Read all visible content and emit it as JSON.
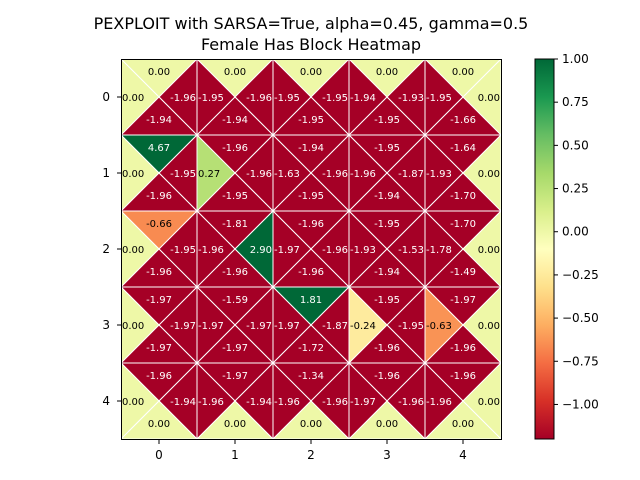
{
  "chart_data": {
    "type": "heatmap",
    "title_lines": [
      "PEXPLOIT with SARSA=True, alpha=0.45, gamma=0.5",
      "Female Has Block Heatmap"
    ],
    "x_ticks": [
      "0",
      "1",
      "2",
      "3",
      "4"
    ],
    "y_ticks": [
      "0",
      "1",
      "2",
      "3",
      "4"
    ],
    "colorbar": {
      "vmin": -1.2,
      "vmax": 1.0,
      "colormap": "RdYlGn",
      "ticks": [
        1.0,
        0.75,
        0.5,
        0.25,
        0.0,
        -0.25,
        -0.5,
        -0.75,
        -1.0
      ],
      "tick_labels": [
        "1.00",
        "0.75",
        "0.50",
        "0.25",
        "0.00",
        "−0.25",
        "−0.50",
        "−0.75",
        "−1.00"
      ]
    },
    "cells": [
      [
        {
          "top": 0.0,
          "left": 0.0,
          "right": -1.96,
          "bottom": -1.94
        },
        {
          "top": 0.0,
          "left": -1.95,
          "right": -1.96,
          "bottom": -1.94
        },
        {
          "top": 0.0,
          "left": -1.95,
          "right": -1.95,
          "bottom": -1.95
        },
        {
          "top": 0.0,
          "left": -1.94,
          "right": -1.93,
          "bottom": -1.95
        },
        {
          "top": 0.0,
          "left": -1.95,
          "right": 0.0,
          "bottom": -1.66
        }
      ],
      [
        {
          "top": 4.67,
          "left": 0.0,
          "right": -1.95,
          "bottom": -1.96
        },
        {
          "top": -1.96,
          "left": 0.27,
          "right": -1.96,
          "bottom": -1.95
        },
        {
          "top": -1.94,
          "left": -1.63,
          "right": -1.96,
          "bottom": -1.95
        },
        {
          "top": -1.95,
          "left": -1.96,
          "right": -1.87,
          "bottom": -1.94
        },
        {
          "top": -1.64,
          "left": -1.93,
          "right": 0.0,
          "bottom": -1.7
        }
      ],
      [
        {
          "top": -0.66,
          "left": 0.0,
          "right": -1.95,
          "bottom": -1.96
        },
        {
          "top": -1.81,
          "left": -1.96,
          "right": 2.9,
          "bottom": -1.96
        },
        {
          "top": -1.96,
          "left": -1.97,
          "right": -1.96,
          "bottom": -1.96
        },
        {
          "top": -1.95,
          "left": -1.93,
          "right": -1.53,
          "bottom": -1.94
        },
        {
          "top": -1.7,
          "left": -1.78,
          "right": 0.0,
          "bottom": -1.49
        }
      ],
      [
        {
          "top": -1.97,
          "left": 0.0,
          "right": -1.97,
          "bottom": -1.97
        },
        {
          "top": -1.59,
          "left": -1.97,
          "right": -1.97,
          "bottom": -1.97
        },
        {
          "top": 1.81,
          "left": -1.97,
          "right": -1.87,
          "bottom": -1.72
        },
        {
          "top": -1.95,
          "left": -0.24,
          "right": -1.95,
          "bottom": -1.96
        },
        {
          "top": -1.97,
          "left": -0.63,
          "right": 0.0,
          "bottom": -1.96
        }
      ],
      [
        {
          "top": -1.96,
          "left": 0.0,
          "right": -1.94,
          "bottom": 0.0
        },
        {
          "top": -1.97,
          "left": -1.96,
          "right": -1.94,
          "bottom": 0.0
        },
        {
          "top": -1.34,
          "left": -1.96,
          "right": -1.96,
          "bottom": 0.0
        },
        {
          "top": -1.96,
          "left": -1.97,
          "right": -1.96,
          "bottom": 0.0
        },
        {
          "top": -1.96,
          "left": -1.96,
          "right": 0.0,
          "bottom": 0.0
        }
      ]
    ]
  }
}
